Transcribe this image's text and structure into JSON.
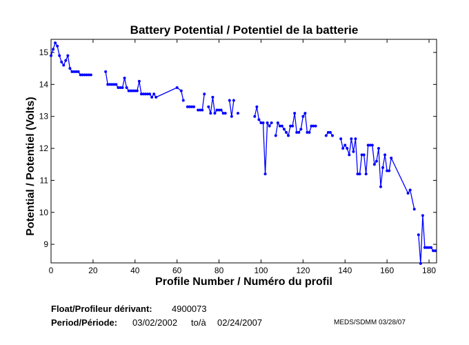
{
  "chart_data": {
    "type": "line",
    "title": "Battery Potential / Potentiel de la batterie",
    "xlabel": "Profile Number / Numéro du profil",
    "ylabel": "Potential / Potentiel (Volts)",
    "xlim": [
      0,
      183.6
    ],
    "ylim": [
      8.42,
      15.41
    ],
    "xticks": [
      0,
      20,
      40,
      60,
      80,
      100,
      120,
      140,
      160,
      180
    ],
    "yticks": [
      9,
      10,
      11,
      12,
      13,
      14,
      15
    ],
    "grid": false,
    "series": [
      {
        "name": "Battery Potential",
        "color": "#0000ff",
        "segments": [
          [
            [
              0,
              14.9
            ],
            [
              1,
              15.1
            ],
            [
              2,
              15.3
            ],
            [
              3,
              15.2
            ],
            [
              4,
              14.9
            ],
            [
              5,
              14.7
            ],
            [
              6,
              14.6
            ],
            [
              7,
              14.75
            ],
            [
              8,
              14.9
            ],
            [
              9,
              14.5
            ],
            [
              10,
              14.4
            ],
            [
              11,
              14.4
            ],
            [
              12,
              14.4
            ],
            [
              13,
              14.4
            ],
            [
              14,
              14.3
            ],
            [
              15,
              14.3
            ],
            [
              16,
              14.3
            ],
            [
              17,
              14.3
            ],
            [
              18,
              14.3
            ],
            [
              19,
              14.3
            ]
          ],
          [
            [
              26,
              14.4
            ],
            [
              27,
              14.0
            ],
            [
              28,
              14.0
            ],
            [
              29,
              14.0
            ],
            [
              30,
              14.0
            ],
            [
              31,
              14.0
            ],
            [
              32,
              13.9
            ],
            [
              33,
              13.9
            ],
            [
              34,
              13.9
            ],
            [
              35,
              14.2
            ],
            [
              36,
              13.9
            ],
            [
              37,
              13.8
            ],
            [
              38,
              13.8
            ],
            [
              39,
              13.8
            ],
            [
              40,
              13.8
            ],
            [
              41,
              13.8
            ],
            [
              42,
              14.1
            ],
            [
              43,
              13.7
            ],
            [
              44,
              13.7
            ],
            [
              45,
              13.7
            ],
            [
              46,
              13.7
            ],
            [
              47,
              13.7
            ],
            [
              48,
              13.6
            ],
            [
              49,
              13.7
            ],
            [
              50,
              13.6
            ],
            [
              60,
              13.9
            ],
            [
              62,
              13.8
            ],
            [
              63,
              13.5
            ]
          ],
          [
            [
              65,
              13.3
            ],
            [
              66,
              13.3
            ],
            [
              67,
              13.3
            ],
            [
              68,
              13.3
            ]
          ],
          [
            [
              70,
              13.2
            ],
            [
              71,
              13.2
            ],
            [
              72,
              13.2
            ],
            [
              73,
              13.7
            ]
          ],
          [
            [
              75,
              13.3
            ],
            [
              76,
              13.1
            ],
            [
              77,
              13.6
            ],
            [
              78,
              13.1
            ],
            [
              79,
              13.2
            ],
            [
              80,
              13.2
            ],
            [
              81,
              13.2
            ],
            [
              82,
              13.1
            ],
            [
              83,
              13.1
            ]
          ],
          [
            [
              85,
              13.5
            ],
            [
              86,
              13.0
            ],
            [
              87,
              13.5
            ]
          ],
          [
            [
              89,
              13.1
            ]
          ],
          [
            [
              97,
              13.0
            ],
            [
              98,
              13.3
            ],
            [
              99,
              12.9
            ],
            [
              100,
              12.8
            ],
            [
              101,
              12.8
            ],
            [
              102,
              11.2
            ],
            [
              103,
              12.8
            ],
            [
              104,
              12.7
            ],
            [
              105,
              12.8
            ]
          ],
          [
            [
              107,
              12.4
            ],
            [
              108,
              12.8
            ],
            [
              109,
              12.7
            ],
            [
              110,
              12.7
            ],
            [
              111,
              12.6
            ],
            [
              112,
              12.5
            ],
            [
              113,
              12.4
            ],
            [
              114,
              12.7
            ],
            [
              115,
              12.7
            ],
            [
              116,
              13.1
            ],
            [
              117,
              12.5
            ],
            [
              118,
              12.5
            ],
            [
              119,
              12.6
            ],
            [
              120,
              13.0
            ],
            [
              121,
              13.1
            ],
            [
              122,
              12.5
            ],
            [
              123,
              12.5
            ],
            [
              124,
              12.7
            ],
            [
              125,
              12.7
            ],
            [
              126,
              12.7
            ]
          ],
          [
            [
              131,
              12.4
            ],
            [
              132,
              12.5
            ],
            [
              133,
              12.5
            ],
            [
              134,
              12.4
            ]
          ],
          [
            [
              138,
              12.3
            ],
            [
              139,
              12.0
            ],
            [
              140,
              12.1
            ],
            [
              141,
              12.0
            ],
            [
              142,
              11.8
            ],
            [
              143,
              12.3
            ],
            [
              144,
              11.9
            ],
            [
              145,
              12.3
            ],
            [
              146,
              11.2
            ],
            [
              147,
              11.2
            ],
            [
              148,
              11.8
            ],
            [
              149,
              11.8
            ],
            [
              150,
              11.2
            ],
            [
              151,
              12.1
            ],
            [
              152,
              12.1
            ],
            [
              153,
              12.1
            ],
            [
              154,
              11.5
            ],
            [
              155,
              11.6
            ],
            [
              156,
              12.0
            ],
            [
              157,
              10.8
            ],
            [
              158,
              11.4
            ],
            [
              159,
              11.8
            ],
            [
              160,
              11.3
            ],
            [
              161,
              11.3
            ],
            [
              162,
              11.7
            ],
            [
              170,
              10.6
            ],
            [
              171,
              10.7
            ],
            [
              173,
              10.1
            ]
          ],
          [
            [
              175,
              9.3
            ],
            [
              176,
              8.4
            ],
            [
              177,
              9.9
            ],
            [
              178,
              8.9
            ],
            [
              179,
              8.9
            ],
            [
              180,
              8.9
            ],
            [
              181,
              8.9
            ],
            [
              182,
              8.8
            ],
            [
              183,
              8.8
            ]
          ]
        ]
      }
    ]
  },
  "footer": {
    "float_label": "Float/Profileur dérivant:",
    "float_value": "4900073",
    "period_label": "Period/Période:",
    "period_start": "03/02/2002",
    "period_sep": "to/à",
    "period_end": "02/24/2007",
    "credit": "MEDS/SDMM  03/28/07"
  }
}
